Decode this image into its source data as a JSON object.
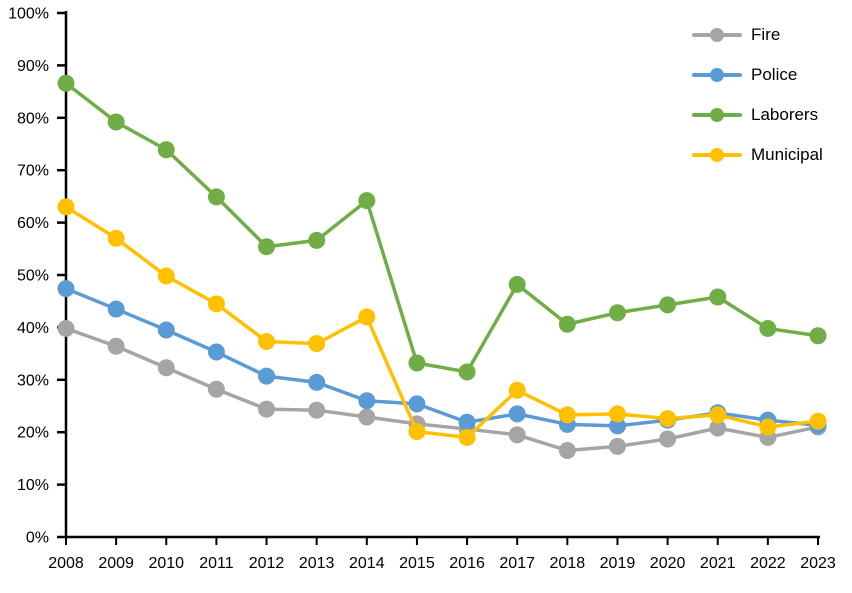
{
  "chart_data": {
    "type": "line",
    "title": "",
    "xlabel": "",
    "ylabel": "",
    "categories": [
      "2008",
      "2009",
      "2010",
      "2011",
      "2012",
      "2013",
      "2014",
      "2015",
      "2016",
      "2017",
      "2018",
      "2019",
      "2020",
      "2021",
      "2022",
      "2023"
    ],
    "series": [
      {
        "name": "Fire",
        "color": "#A5A5A5",
        "values": [
          39.8,
          36.4,
          32.3,
          28.2,
          24.4,
          24.2,
          22.9,
          21.6,
          20.6,
          19.5,
          16.5,
          17.3,
          18.7,
          20.8,
          19.0,
          21.0
        ]
      },
      {
        "name": "Police",
        "color": "#5B9BD5",
        "values": [
          47.4,
          43.5,
          39.5,
          35.3,
          30.7,
          29.5,
          26.0,
          25.4,
          21.9,
          23.5,
          21.5,
          21.2,
          22.3,
          23.7,
          22.3,
          21.3
        ]
      },
      {
        "name": "Laborers",
        "color": "#70AD47",
        "values": [
          86.6,
          79.2,
          73.9,
          64.9,
          55.4,
          56.6,
          64.2,
          33.2,
          31.5,
          48.2,
          40.6,
          42.8,
          44.3,
          45.8,
          39.8,
          38.4
        ]
      },
      {
        "name": "Municipal",
        "color": "#FFC000",
        "values": [
          63.0,
          57.0,
          49.8,
          44.5,
          37.3,
          36.9,
          42.0,
          20.1,
          19.0,
          28.0,
          23.3,
          23.5,
          22.6,
          23.3,
          21.0,
          22.1
        ]
      }
    ],
    "ylim": [
      0,
      100
    ],
    "y_tick_step": 10,
    "y_tick_labels": [
      "0%",
      "10%",
      "20%",
      "30%",
      "40%",
      "50%",
      "60%",
      "70%",
      "80%",
      "90%",
      "100%"
    ],
    "grid": false,
    "legend_position": "top-right",
    "axis_color": "#000000",
    "background": "#FFFFFF"
  }
}
